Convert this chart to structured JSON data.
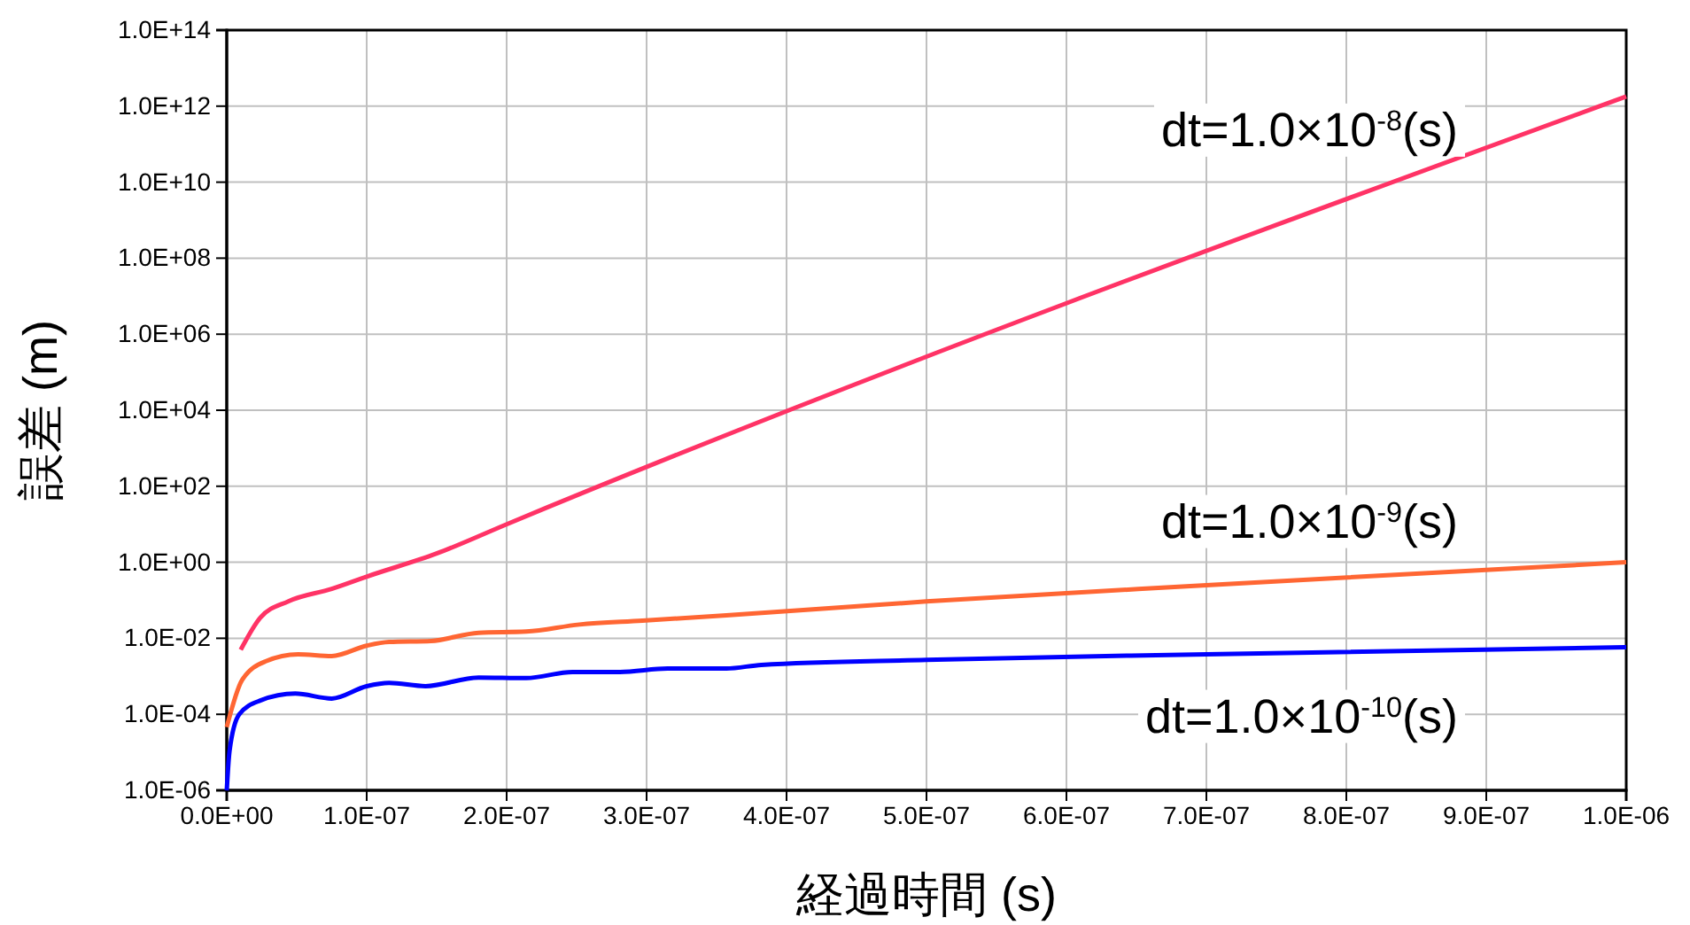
{
  "chart_data": {
    "type": "line",
    "xlabel": "経過時間  (s)",
    "ylabel": "誤差  (m)",
    "log": "y",
    "grid": true,
    "legend": false,
    "marker": "none",
    "line_style": "solid",
    "xlim": [
      0,
      1e-06
    ],
    "xticks": [
      {
        "value": 0,
        "label": "0.0E+00"
      },
      {
        "value": 1e-07,
        "label": "1.0E-07"
      },
      {
        "value": 2e-07,
        "label": "2.0E-07"
      },
      {
        "value": 3e-07,
        "label": "3.0E-07"
      },
      {
        "value": 4e-07,
        "label": "4.0E-07"
      },
      {
        "value": 5e-07,
        "label": "5.0E-07"
      },
      {
        "value": 6e-07,
        "label": "6.0E-07"
      },
      {
        "value": 7e-07,
        "label": "7.0E-07"
      },
      {
        "value": 8e-07,
        "label": "8.0E-07"
      },
      {
        "value": 9e-07,
        "label": "9.0E-07"
      },
      {
        "value": 1e-06,
        "label": "1.0E-06"
      }
    ],
    "ylim": [
      1e-06,
      100000000000000.0
    ],
    "yticks": [
      {
        "value": 1e-06,
        "label": "1.0E-06"
      },
      {
        "value": 0.0001,
        "label": "1.0E-04"
      },
      {
        "value": 0.01,
        "label": "1.0E-02"
      },
      {
        "value": 1,
        "label": "1.0E+00"
      },
      {
        "value": 100.0,
        "label": "1.0E+02"
      },
      {
        "value": 10000.0,
        "label": "1.0E+04"
      },
      {
        "value": 1000000.0,
        "label": "1.0E+06"
      },
      {
        "value": 100000000.0,
        "label": "1.0E+08"
      },
      {
        "value": 10000000000.0,
        "label": "1.0E+10"
      },
      {
        "value": 1000000000000.0,
        "label": "1.0E+12"
      },
      {
        "value": 100000000000000.0,
        "label": "1.0E+14"
      }
    ],
    "series": [
      {
        "name": "dt=1.0×10$^{-8}$(s)",
        "color": "#ff3366",
        "x": [
          1e-08,
          2.4e-08,
          4.4e-08,
          7.5e-08,
          1e-07,
          1.5e-07,
          2e-07,
          1e-06
        ],
        "values": [
          0.005,
          0.035,
          0.094,
          0.2,
          0.42,
          1.7,
          10,
          1800000000000.0
        ]
      },
      {
        "name": "dt=1.0×10$^{-9}$(s)",
        "color": "#ff6633",
        "x": [
          0,
          1.1e-08,
          2.8e-08,
          5.1e-08,
          7.5e-08,
          1e-07,
          1.16e-07,
          1.46e-07,
          1.8e-07,
          2.14e-07,
          2.52e-07,
          2.97e-07,
          3.57e-07,
          5e-07,
          7e-07,
          1e-06
        ],
        "values": [
          4.6e-05,
          0.0008,
          0.0025,
          0.0038,
          0.0034,
          0.0064,
          0.008,
          0.0085,
          0.014,
          0.015,
          0.023,
          0.029,
          0.04,
          0.093,
          0.25,
          1.0
        ]
      },
      {
        "name": "dt=1.0×10$^{-10}$(s)",
        "color": "#0000ff",
        "x": [
          0,
          2e-09,
          8.9e-09,
          2.4e-08,
          4.9e-08,
          7.5e-08,
          1e-07,
          1.16e-07,
          1.42e-07,
          1.8e-07,
          2.14e-07,
          2.47e-07,
          2.81e-07,
          3.15e-07,
          3.57e-07,
          3.82e-07,
          5e-07,
          7e-07,
          1e-06
        ],
        "values": [
          1e-06,
          1.1e-05,
          0.0001,
          0.00023,
          0.00035,
          0.00026,
          0.00055,
          0.00067,
          0.00055,
          0.00093,
          0.0009,
          0.0013,
          0.0013,
          0.0016,
          0.0016,
          0.002,
          0.0027,
          0.0038,
          0.0058
        ]
      }
    ]
  }
}
